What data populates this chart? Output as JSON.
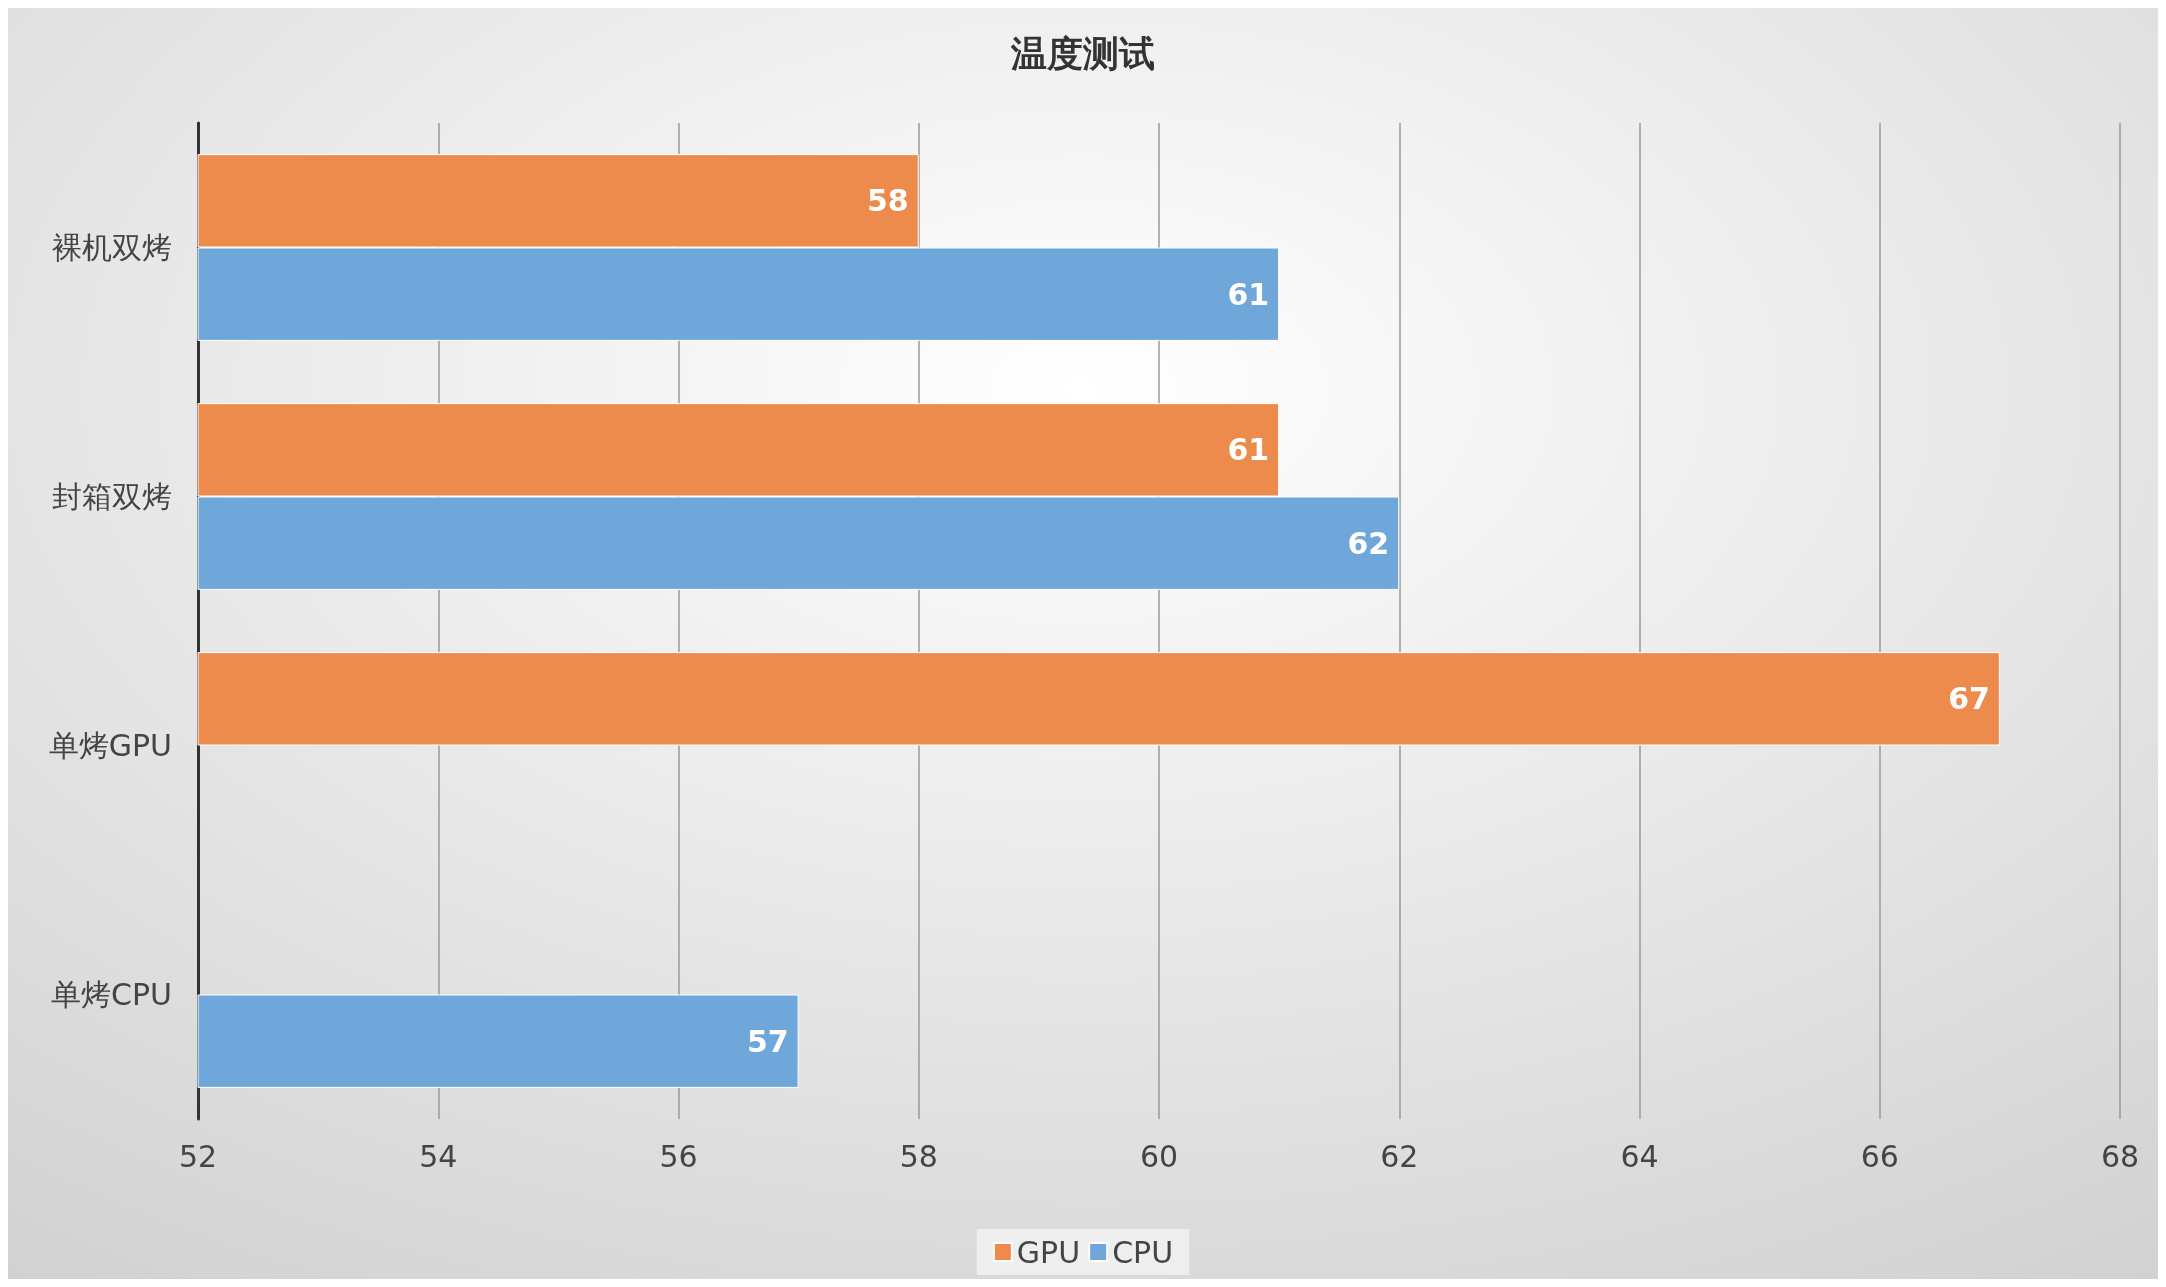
{
  "chart_data": {
    "type": "bar",
    "orientation": "horizontal",
    "title": "温度测试",
    "categories": [
      "裸机双烤",
      "封箱双烤",
      "单烤GPU",
      "单烤CPU"
    ],
    "series": [
      {
        "name": "GPU",
        "color": "#ed8b4c",
        "values": [
          58,
          61,
          67,
          null
        ]
      },
      {
        "name": "CPU",
        "color": "#6fa7da",
        "values": [
          61,
          62,
          null,
          57
        ]
      }
    ],
    "xlim": [
      52,
      68
    ],
    "xticks": [
      52,
      54,
      56,
      58,
      60,
      62,
      64,
      66,
      68
    ],
    "grid": "x",
    "legend": "bottom",
    "data_labels": true
  }
}
